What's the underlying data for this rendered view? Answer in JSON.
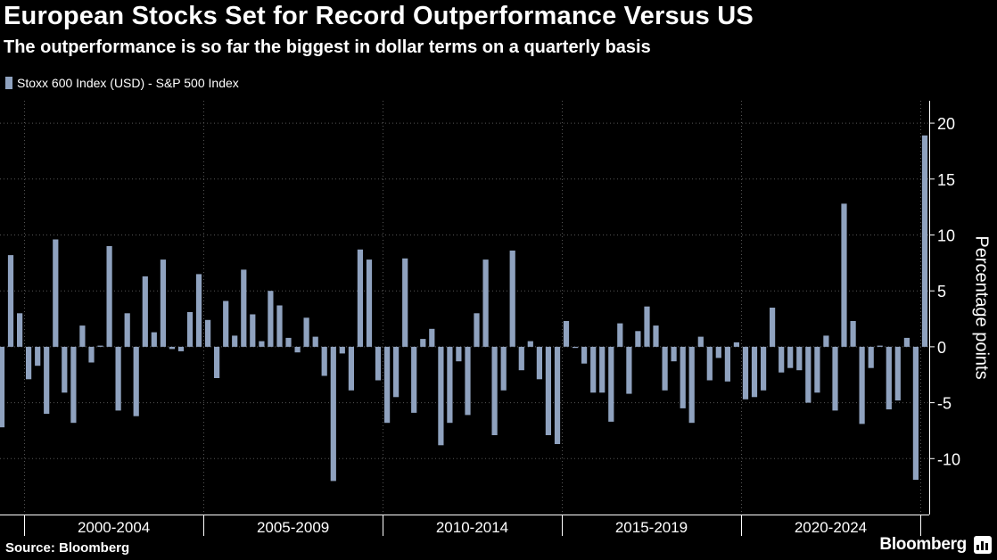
{
  "title": "European Stocks Set for Record Outperformance Versus US",
  "subtitle": "The outperformance is so far the biggest in dollar terms on a quarterly basis",
  "source": "Source: Bloomberg",
  "brand": "Bloomberg",
  "colors": {
    "bar": "#8fa2bf",
    "background": "#000000",
    "grid": "#555555",
    "text": "#ffffff"
  },
  "chart_data": {
    "type": "bar",
    "legend": [
      "Stoxx 600 Index (USD) - S&P 500 Index"
    ],
    "legend_position": "top-left",
    "ylabel": "Percentage points",
    "xlabel": "",
    "y_axis_side": "right",
    "ylim": [
      -15,
      22
    ],
    "yticks": [
      -10,
      -5,
      0,
      5,
      10,
      15,
      20
    ],
    "ytick_labels": [
      "-10",
      "-5",
      "0",
      "5",
      "10",
      "15",
      "20"
    ],
    "grid": true,
    "x_period_labels": [
      "2000-2004",
      "2005-2009",
      "2010-2014",
      "2015-2019",
      "2020-2024"
    ],
    "period_start_years": [
      2000,
      2005,
      2010,
      2015,
      2020,
      2025
    ],
    "start": "1999 Q2",
    "frequency": "quarterly",
    "series": [
      {
        "name": "Stoxx 600 Index (USD) - S&P 500 Index",
        "values": [
          -7.2,
          8.2,
          3.0,
          -2.9,
          -1.7,
          -6.0,
          9.6,
          -4.1,
          -6.8,
          1.9,
          -1.4,
          0.1,
          9.0,
          -5.7,
          3.0,
          -6.2,
          6.3,
          1.3,
          7.8,
          -0.2,
          -0.4,
          3.1,
          6.5,
          2.4,
          -2.8,
          4.1,
          1.0,
          6.9,
          2.9,
          0.5,
          5.0,
          3.7,
          0.8,
          -0.5,
          2.6,
          0.9,
          -2.6,
          -12.0,
          -0.6,
          -3.9,
          8.7,
          7.8,
          -3.0,
          -6.8,
          -4.5,
          7.9,
          -5.9,
          0.7,
          1.6,
          -8.8,
          -6.8,
          -1.3,
          -6.1,
          3.0,
          7.8,
          -7.9,
          -3.9,
          8.6,
          -2.1,
          0.5,
          -2.9,
          -7.9,
          -8.7,
          2.3,
          -0.1,
          -1.5,
          -4.1,
          -4.1,
          -6.7,
          2.1,
          -4.2,
          1.4,
          3.6,
          1.9,
          -3.9,
          -1.3,
          -5.5,
          -6.8,
          0.9,
          -3.0,
          -1.0,
          -3.1,
          0.4,
          -4.7,
          -4.5,
          -3.9,
          3.5,
          -2.3,
          -1.9,
          -2.1,
          -5.0,
          -4.1,
          1.0,
          -5.7,
          12.8,
          2.3,
          -6.9,
          -1.9,
          0.1,
          -5.6,
          -4.8,
          0.8,
          -11.9,
          18.9
        ]
      }
    ]
  }
}
